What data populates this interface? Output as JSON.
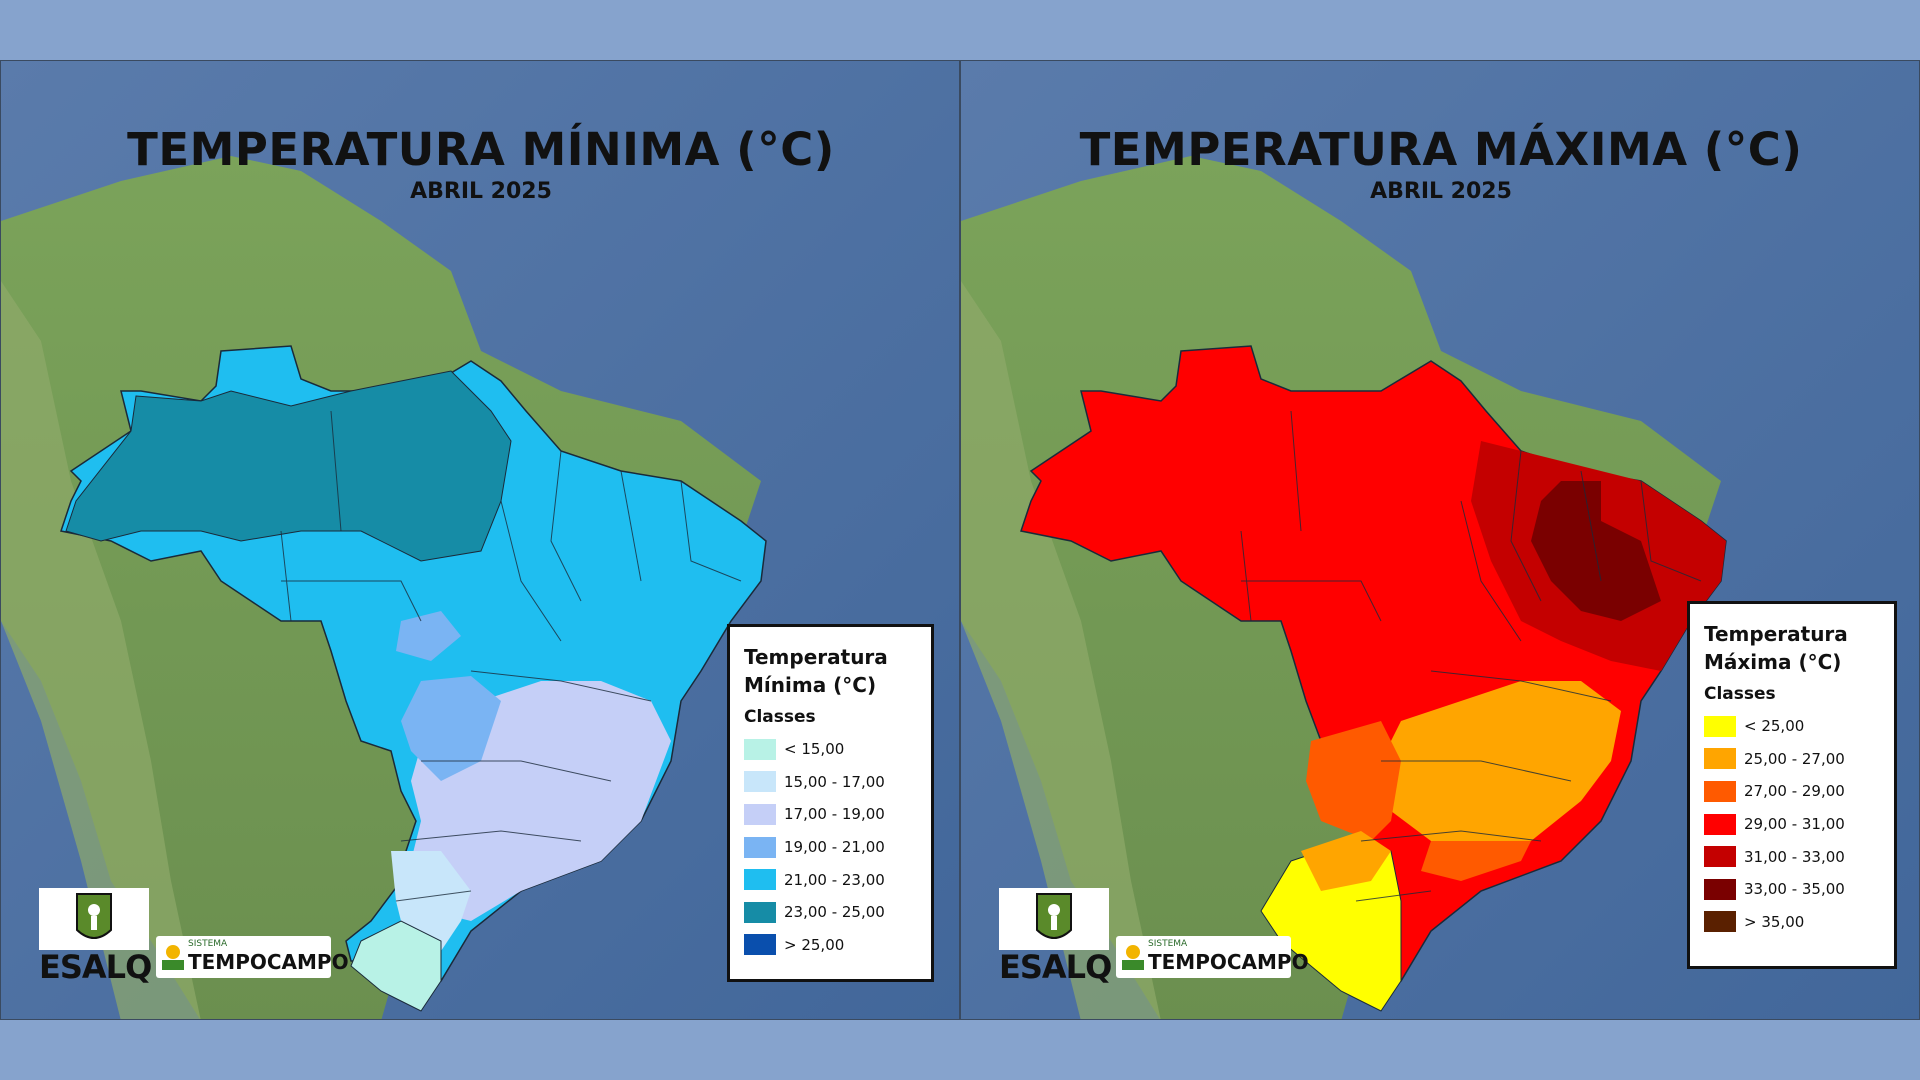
{
  "panels": [
    {
      "id": "min",
      "title": "TEMPERATURA MÍNIMA (°C)",
      "subtitle": "ABRIL 2025",
      "legend": {
        "title_line1": "Temperatura",
        "title_line2": "Mínima (°C)",
        "classes_label": "Classes",
        "items": [
          {
            "label": "< 15,00",
            "color": "#b8f2e6"
          },
          {
            "label": "15,00 - 17,00",
            "color": "#c8e6fa"
          },
          {
            "label": "17,00 - 19,00",
            "color": "#c5cff7"
          },
          {
            "label": "19,00 - 21,00",
            "color": "#7ab4f3"
          },
          {
            "label": "21,00 - 23,00",
            "color": "#1fbef0"
          },
          {
            "label": "23,00 - 25,00",
            "color": "#168ca6"
          },
          {
            "label": "> 25,00",
            "color": "#0a4fad"
          }
        ]
      }
    },
    {
      "id": "max",
      "title": "TEMPERATURA MÁXIMA (°C)",
      "subtitle": "ABRIL 2025",
      "legend": {
        "title_line1": "Temperatura",
        "title_line2": "Máxima (°C)",
        "classes_label": "Classes",
        "items": [
          {
            "label": "< 25,00",
            "color": "#ffff00"
          },
          {
            "label": "25,00 - 27,00",
            "color": "#ffa500"
          },
          {
            "label": "27,00 - 29,00",
            "color": "#ff5a00"
          },
          {
            "label": "29,00 - 31,00",
            "color": "#ff0000"
          },
          {
            "label": "31,00 - 33,00",
            "color": "#c40000"
          },
          {
            "label": "33,00 - 35,00",
            "color": "#7a0000"
          },
          {
            "label": "> 35,00",
            "color": "#5a2000"
          }
        ]
      }
    }
  ],
  "logos": {
    "esalq": "ESALQ",
    "tempocampo_top": "SISTEMA",
    "tempocampo": "TEMPOCAMPO"
  },
  "colors": {
    "background": "#86a3cd",
    "ocean": "#4d6f9f",
    "land": "#6f9a55"
  }
}
